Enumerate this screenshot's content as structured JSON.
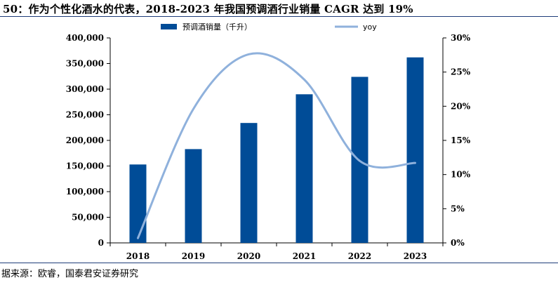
{
  "title": "50：作为个性化酒水的代表，2018-2023 年我国预调酒行业销量 CAGR 达到 19%",
  "source": "据来源：欧睿，国泰君安证券研究",
  "colors": {
    "bar": "#004c97",
    "line": "#8fb1dc",
    "axis": "#000000",
    "rule": "#1f3d7a"
  },
  "chart_data": {
    "type": "bar",
    "categories": [
      "2018",
      "2019",
      "2020",
      "2021",
      "2022",
      "2023"
    ],
    "series": [
      {
        "name": "预调酒销量（千升）",
        "type": "bar",
        "axis": "left",
        "values": [
          153000,
          183000,
          234000,
          290000,
          324000,
          362000
        ]
      },
      {
        "name": "yoy",
        "type": "line",
        "axis": "right",
        "smooth": true,
        "values": [
          0.7,
          19.6,
          27.6,
          23.9,
          12.0,
          11.7
        ]
      }
    ],
    "y_left": {
      "min": 0,
      "max": 400000,
      "ticks": [
        0,
        50000,
        100000,
        150000,
        200000,
        250000,
        300000,
        350000,
        400000
      ],
      "tick_labels": [
        "0",
        "50,000",
        "100,000",
        "150,000",
        "200,000",
        "250,000",
        "300,000",
        "350,000",
        "400,000"
      ]
    },
    "y_right": {
      "min": 0,
      "max": 30,
      "ticks": [
        0,
        5,
        10,
        15,
        20,
        25,
        30
      ],
      "tick_labels": [
        "0%",
        "5%",
        "10%",
        "15%",
        "20%",
        "25%",
        "30%"
      ]
    },
    "legend_position": "top",
    "grid": false
  }
}
